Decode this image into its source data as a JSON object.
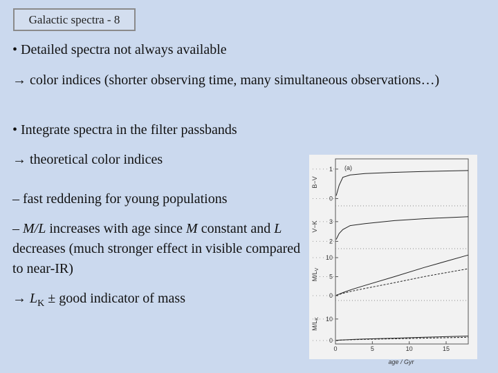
{
  "header": {
    "title": "Galactic spectra - 8"
  },
  "paragraphs": [
    [
      {
        "text": "• Detailed spectra not always available"
      }
    ],
    [
      {
        "text": "→ color indices (shorter observing time, many simultaneous observations…)"
      }
    ],
    [
      {
        "text": "• Integrate spectra in the filter passbands"
      }
    ],
    [
      {
        "text": "→ theoretical color indices"
      }
    ],
    [
      {
        "text": "– fast reddening for young populations"
      }
    ],
    [
      {
        "text": "– "
      },
      {
        "text": "M/L",
        "italic": true
      },
      {
        "text": " increases with age since "
      },
      {
        "text": "M",
        "italic": true
      },
      {
        "text": " constant and "
      },
      {
        "text": "L",
        "italic": true
      },
      {
        "text": " decreases (much stronger effect in visible compared to near-IR)"
      }
    ],
    [
      {
        "text": "→ "
      },
      {
        "text": "L",
        "italic": true
      },
      {
        "text": "K",
        "sub": true
      },
      {
        "text": " ± good indicator of mass"
      }
    ]
  ],
  "figure": {
    "panel_label": "(a)",
    "xlabel": "age / Gyr",
    "xlim": [
      0,
      18
    ],
    "xticks": [
      0,
      5,
      10,
      15
    ],
    "x": [
      0.1,
      0.5,
      1,
      2,
      4,
      8,
      12,
      18
    ],
    "panels": [
      {
        "ylabel": "B−V",
        "ylim": [
          -0.2,
          1.3
        ],
        "yticks": [
          0,
          1
        ],
        "series": [
          {
            "values": [
              0.1,
              0.45,
              0.72,
              0.8,
              0.85,
              0.89,
              0.92,
              0.95
            ],
            "dashed": false
          }
        ]
      },
      {
        "ylabel": "V−K",
        "ylim": [
          1.7,
          3.8
        ],
        "yticks": [
          2,
          3
        ],
        "series": [
          {
            "values": [
              2.1,
              2.4,
              2.6,
              2.8,
              2.9,
              3.05,
              3.15,
              3.25
            ],
            "dashed": false
          }
        ]
      },
      {
        "ylabel": "M/L",
        "ylabel_sub": "V",
        "ylim": [
          -0.9,
          12
        ],
        "yticks": [
          0,
          5,
          10
        ],
        "series": [
          {
            "values": [
              0.1,
              0.4,
              0.8,
              1.5,
              2.7,
              5,
              7.4,
              10.7
            ],
            "dashed": false
          },
          {
            "values": [
              0.1,
              0.3,
              0.6,
              1.1,
              1.9,
              3.4,
              5,
              7.1
            ],
            "dashed": true
          }
        ]
      },
      {
        "ylabel": "M/L",
        "ylabel_sub": "K",
        "ylim": [
          -1.6,
          17
        ],
        "yticks": [
          0,
          10
        ],
        "series": [
          {
            "values": [
              0.1,
              0.2,
              0.3,
              0.45,
              0.7,
              1.1,
              1.5,
              2.1
            ],
            "dashed": false
          },
          {
            "values": [
              0.1,
              0.15,
              0.25,
              0.35,
              0.55,
              0.85,
              1.1,
              1.5
            ],
            "dashed": true
          }
        ]
      }
    ]
  }
}
